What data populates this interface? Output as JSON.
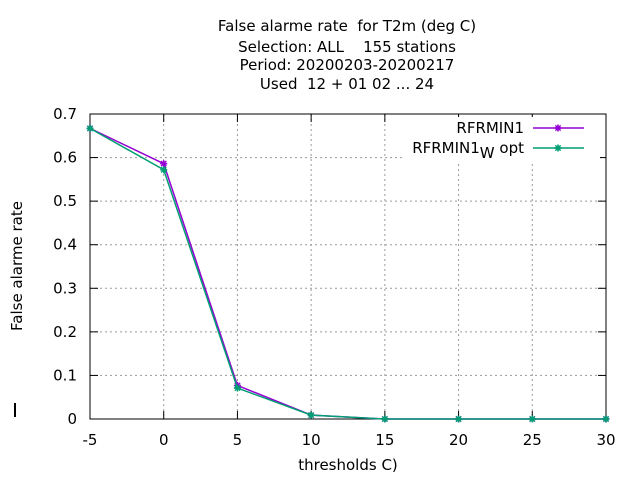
{
  "chart_data": {
    "type": "line",
    "title_lines": [
      "False alarme rate  for T2m (deg C)",
      "Selection: ALL    155 stations",
      "Period: 20200203-20200217",
      "Used  12 + 01 02 ... 24"
    ],
    "xlabel": "thresholds C)",
    "ylabel": "False alarme rate",
    "x": [
      -5,
      0,
      5,
      10,
      15,
      20,
      25,
      30
    ],
    "xlim": [
      -5,
      30
    ],
    "ylim": [
      0,
      0.7
    ],
    "xticks": [
      "-5",
      "0",
      "5",
      "10",
      "15",
      "20",
      "25",
      "30"
    ],
    "yticks": [
      "0",
      "0.1",
      "0.2",
      "0.3",
      "0.4",
      "0.5",
      "0.6",
      "0.7"
    ],
    "grid": true,
    "legend_position": "top-right",
    "series": [
      {
        "name": "RFRMIN1",
        "color": "#9400d3",
        "values": [
          0.667,
          0.586,
          0.077,
          0.009,
          0.0,
          0.0,
          0.0,
          0.0
        ]
      },
      {
        "name": "RFRMIN1",
        "name_subscript": "W",
        "name_suffix": "opt",
        "color": "#009e73",
        "values": [
          0.667,
          0.572,
          0.071,
          0.009,
          0.0,
          0.0,
          0.0,
          0.0
        ]
      }
    ]
  }
}
